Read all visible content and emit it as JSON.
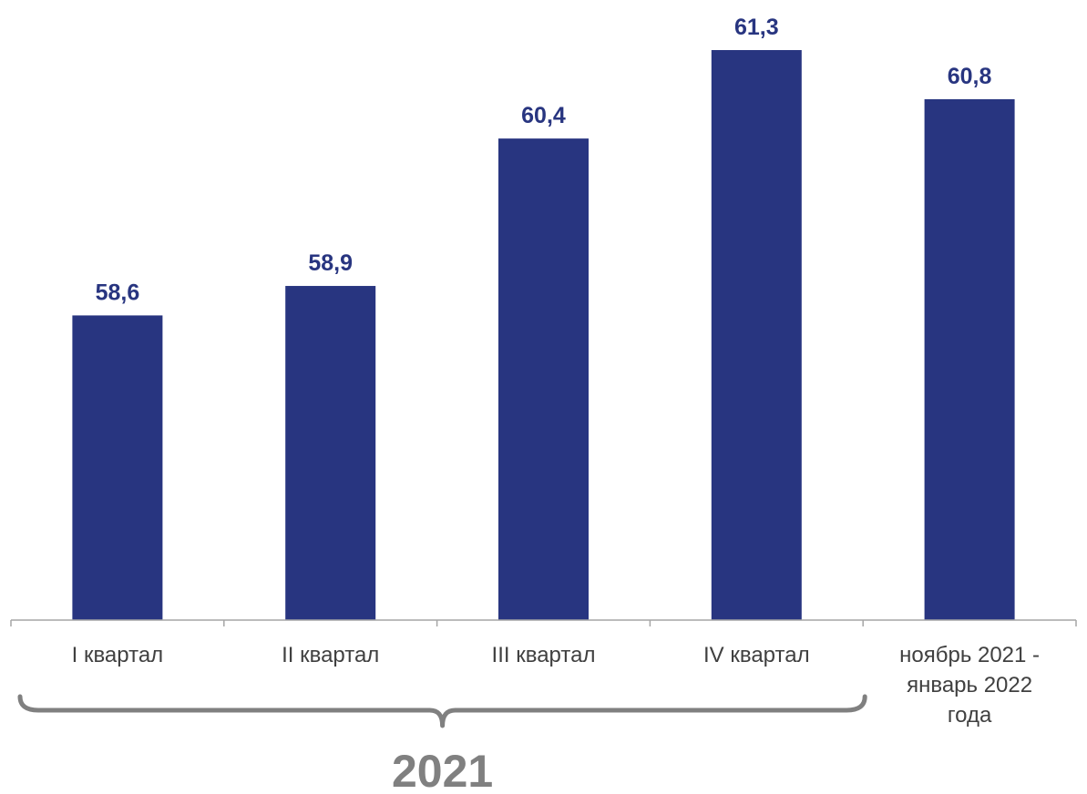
{
  "chart_data": {
    "type": "bar",
    "categories": [
      [
        "I квартал"
      ],
      [
        "II квартал"
      ],
      [
        "III квартал"
      ],
      [
        "IV квартал"
      ],
      [
        "ноябрь 2021 -",
        "январь 2022",
        "года"
      ]
    ],
    "values": [
      58.6,
      58.9,
      60.4,
      61.3,
      60.8
    ],
    "value_labels": [
      "58,6",
      "58,9",
      "60,4",
      "61,3",
      "60,8"
    ],
    "ylim": [
      55.5,
      61.3
    ],
    "grid": false,
    "group_bracket": {
      "label": "2021",
      "spans_categories": [
        0,
        3
      ]
    },
    "colors": {
      "bar": "#283580",
      "value_label": "#283580",
      "axis": "#a6a6a6",
      "bracket": "#808080"
    }
  }
}
